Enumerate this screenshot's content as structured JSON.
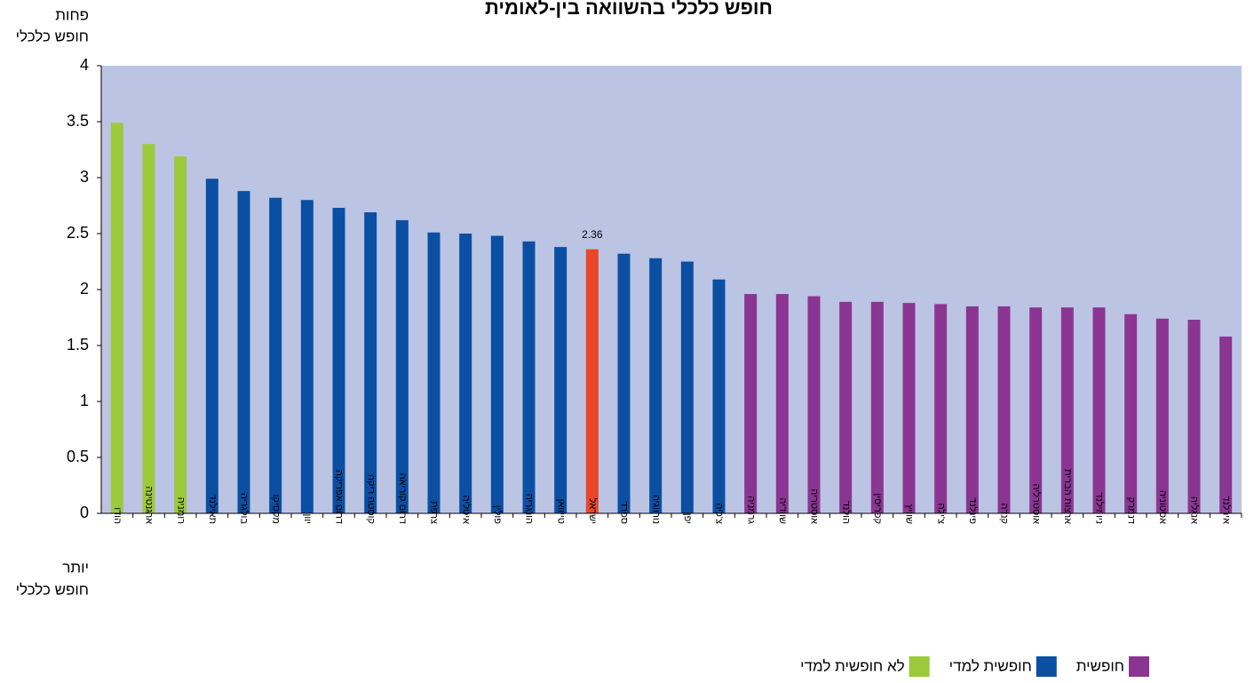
{
  "chart_data": {
    "type": "bar",
    "title": "חופש כלכלי בהשוואה בין-לאומית",
    "y_label_top": [
      "פחות",
      "חופש כלכלי"
    ],
    "y_label_bottom": [
      "יותר",
      "חופש כלכלי"
    ],
    "categories": [
      "הודו",
      "ארגנטינה",
      "רומניה",
      "תאילנד",
      "בולגריה",
      "מקסיקו",
      "יוון",
      "דרום אפריקה",
      "קוסטה ריקה",
      "דרום קוריאה",
      "צרפת",
      "איטליה",
      "פולין",
      "הונגריה",
      "טייוואן",
      "ישראל",
      "ספרד",
      "נורווגיה",
      "יפן",
      "צ'כיה",
      "גרמניה",
      "שוודיה",
      "אוסטריה",
      "הולנד",
      "קפריסין",
      "שוויץ",
      "צ'ילה",
      "פינלנד",
      "קנדה",
      "אוסטרליה",
      "ארצות הברית",
      "ניו זילנד",
      "דנמרק",
      "אסטוניה",
      "אנגליה",
      "אירלנד"
    ],
    "values": [
      3.49,
      3.3,
      3.19,
      2.99,
      2.88,
      2.82,
      2.8,
      2.73,
      2.69,
      2.62,
      2.51,
      2.5,
      2.48,
      2.43,
      2.38,
      2.36,
      2.32,
      2.28,
      2.25,
      2.09,
      1.96,
      1.96,
      1.94,
      1.89,
      1.89,
      1.88,
      1.87,
      1.85,
      1.85,
      1.84,
      1.84,
      1.84,
      1.78,
      1.74,
      1.73,
      1.58
    ],
    "value_labels": [
      null,
      null,
      null,
      null,
      null,
      null,
      null,
      null,
      null,
      null,
      null,
      null,
      null,
      null,
      null,
      "2.36",
      null,
      null,
      null,
      null,
      null,
      null,
      null,
      null,
      null,
      null,
      null,
      null,
      null,
      null,
      null,
      null,
      null,
      null,
      null,
      null
    ],
    "colors": [
      "#9dc93c",
      "#9dc93c",
      "#9dc93c",
      "#0b4fa3",
      "#0b4fa3",
      "#0b4fa3",
      "#0b4fa3",
      "#0b4fa3",
      "#0b4fa3",
      "#0b4fa3",
      "#0b4fa3",
      "#0b4fa3",
      "#0b4fa3",
      "#0b4fa3",
      "#0b4fa3",
      "#e8472a",
      "#0b4fa3",
      "#0b4fa3",
      "#0b4fa3",
      "#0b4fa3",
      "#8b3592",
      "#8b3592",
      "#8b3592",
      "#8b3592",
      "#8b3592",
      "#8b3592",
      "#8b3592",
      "#8b3592",
      "#8b3592",
      "#8b3592",
      "#8b3592",
      "#8b3592",
      "#8b3592",
      "#8b3592",
      "#8b3592",
      "#8b3592"
    ],
    "legend": [
      {
        "name": "חופשית",
        "color": "#8b3592"
      },
      {
        "name": "חופשית למדי",
        "color": "#0b4fa3"
      },
      {
        "name": "לא חופשית למדי",
        "color": "#9dc93c"
      }
    ],
    "ylim": [
      0,
      4
    ],
    "yticks": [
      0,
      0.5,
      1,
      1.5,
      2,
      2.5,
      3,
      3.5,
      4
    ],
    "grid": false,
    "plot_background": "#bbc4e3"
  }
}
